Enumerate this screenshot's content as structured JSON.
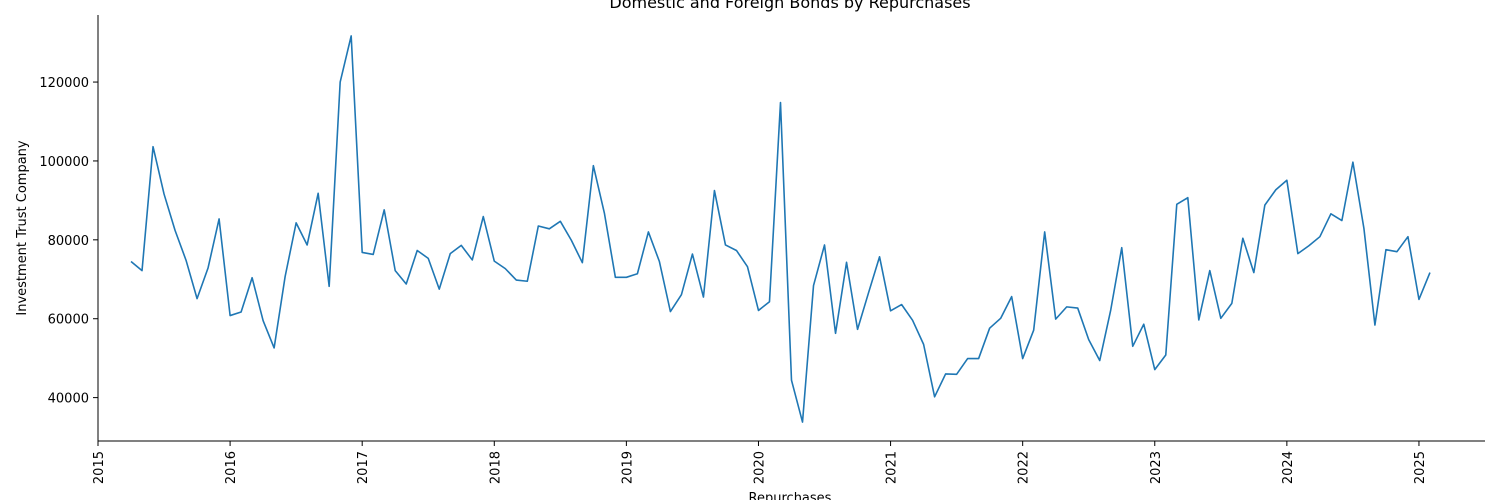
{
  "chart_data": {
    "type": "line",
    "title": "Domestic and Foreign Bonds by Repurchases",
    "xlabel": "Repurchases",
    "ylabel": "Investment Trust Company",
    "xlim": [
      "2015-01",
      "2025-07"
    ],
    "ylim": [
      29000,
      137000
    ],
    "x_ticks": [
      "2015",
      "2016",
      "2017",
      "2018",
      "2019",
      "2020",
      "2021",
      "2022",
      "2023",
      "2024",
      "2025"
    ],
    "y_ticks": [
      40000,
      60000,
      80000,
      100000,
      120000
    ],
    "y_tick_labels": [
      "40000",
      "60000",
      "80000",
      "100000",
      "120000"
    ],
    "grid": false,
    "legend": "none",
    "series": [
      {
        "color": "#1f77b4",
        "x": [
          "2015-04",
          "2015-05",
          "2015-06",
          "2015-07",
          "2015-08",
          "2015-09",
          "2015-10",
          "2015-11",
          "2015-12",
          "2016-01",
          "2016-02",
          "2016-03",
          "2016-04",
          "2016-05",
          "2016-06",
          "2016-07",
          "2016-08",
          "2016-09",
          "2016-10",
          "2016-11",
          "2016-12",
          "2017-01",
          "2017-02",
          "2017-03",
          "2017-04",
          "2017-05",
          "2017-06",
          "2017-07",
          "2017-08",
          "2017-09",
          "2017-10",
          "2017-11",
          "2017-12",
          "2018-01",
          "2018-02",
          "2018-03",
          "2018-04",
          "2018-05",
          "2018-06",
          "2018-07",
          "2018-08",
          "2018-09",
          "2018-10",
          "2018-11",
          "2018-12",
          "2019-01",
          "2019-02",
          "2019-03",
          "2019-04",
          "2019-05",
          "2019-06",
          "2019-07",
          "2019-08",
          "2019-09",
          "2019-10",
          "2019-11",
          "2019-12",
          "2020-01",
          "2020-02",
          "2020-03",
          "2020-04",
          "2020-05",
          "2020-06",
          "2020-07",
          "2020-08",
          "2020-09",
          "2020-10",
          "2020-11",
          "2020-12",
          "2021-01",
          "2021-02",
          "2021-03",
          "2021-04",
          "2021-05",
          "2021-06",
          "2021-07",
          "2021-08",
          "2021-09",
          "2021-10",
          "2021-11",
          "2021-12",
          "2022-01",
          "2022-02",
          "2022-03",
          "2022-04",
          "2022-05",
          "2022-06",
          "2022-07",
          "2022-08",
          "2022-09",
          "2022-10",
          "2022-11",
          "2022-12",
          "2023-01",
          "2023-02",
          "2023-03",
          "2023-04",
          "2023-05",
          "2023-06",
          "2023-07",
          "2023-08",
          "2023-09",
          "2023-10",
          "2023-11",
          "2023-12",
          "2024-01",
          "2024-02",
          "2024-03",
          "2024-04",
          "2024-05",
          "2024-06",
          "2024-07",
          "2024-08",
          "2024-09",
          "2024-10",
          "2024-11",
          "2024-12",
          "2025-01",
          "2025-02"
        ],
        "values": [
          74500,
          72200,
          103600,
          91600,
          82400,
          74800,
          65100,
          72900,
          85300,
          60800,
          61700,
          70400,
          59500,
          52600,
          70700,
          84300,
          78700,
          91800,
          68200,
          120000,
          131700,
          76800,
          76300,
          87600,
          72200,
          68800,
          77300,
          75300,
          67500,
          76500,
          78600,
          74900,
          85900,
          74600,
          72700,
          69800,
          69500,
          83500,
          82800,
          84700,
          79900,
          74200,
          98800,
          86800,
          70500,
          70500,
          71400,
          82000,
          74500,
          61800,
          66100,
          76400,
          65500,
          92500,
          78700,
          77300,
          73200,
          62100,
          64300,
          114800,
          44400,
          33800,
          68400,
          78700,
          56300,
          74300,
          57300,
          66600,
          75700,
          62000,
          63600,
          59600,
          53500,
          40200,
          46000,
          45900,
          49900,
          49900,
          57600,
          60100,
          65600,
          49900,
          57100,
          82000,
          59900,
          63000,
          62700,
          54700,
          49400,
          62200,
          78000,
          53000,
          58600,
          47100,
          50800,
          89000,
          90700,
          59700,
          72200,
          60100,
          63900,
          80400,
          71700,
          88800,
          92700,
          95100,
          76500,
          78500,
          80800,
          86600,
          84900,
          99700,
          82900,
          58400,
          77500,
          77000,
          80800,
          64900,
          71700
        ]
      }
    ]
  }
}
